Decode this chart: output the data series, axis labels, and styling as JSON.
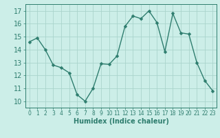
{
  "x": [
    0,
    1,
    2,
    3,
    4,
    5,
    6,
    7,
    8,
    9,
    10,
    11,
    12,
    13,
    14,
    15,
    16,
    17,
    18,
    19,
    20,
    21,
    22,
    23
  ],
  "y": [
    14.6,
    14.9,
    14.0,
    12.8,
    12.6,
    12.2,
    10.5,
    10.0,
    11.0,
    12.9,
    12.85,
    13.5,
    15.8,
    16.6,
    16.4,
    17.0,
    16.1,
    13.85,
    16.8,
    15.3,
    15.2,
    13.0,
    11.6,
    10.8
  ],
  "line_color": "#2e7d6e",
  "bg_color": "#cceee8",
  "grid_color": "#aad4cc",
  "xlabel": "Humidex (Indice chaleur)",
  "xlim": [
    -0.5,
    23.5
  ],
  "ylim": [
    9.5,
    17.5
  ],
  "yticks": [
    10,
    11,
    12,
    13,
    14,
    15,
    16,
    17
  ],
  "xticks": [
    0,
    1,
    2,
    3,
    4,
    5,
    6,
    7,
    8,
    9,
    10,
    11,
    12,
    13,
    14,
    15,
    16,
    17,
    18,
    19,
    20,
    21,
    22,
    23
  ],
  "marker_size": 2.5,
  "line_width": 1.0,
  "xlabel_fontsize": 7,
  "ytick_fontsize": 7,
  "xtick_fontsize": 5.5
}
